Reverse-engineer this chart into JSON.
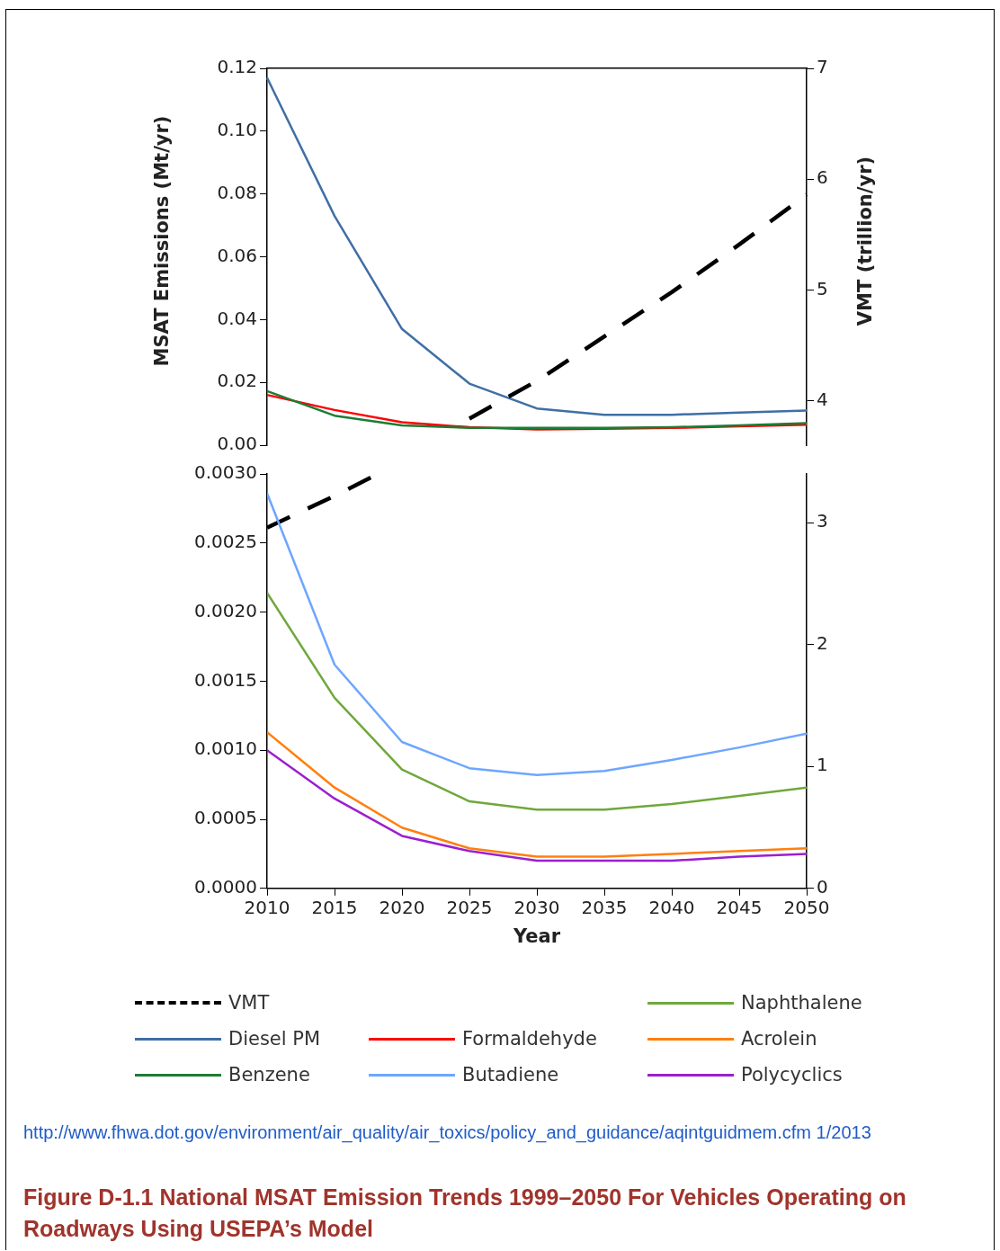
{
  "chart_data": [
    {
      "type": "line",
      "ylabel": "MSAT Emissions (Mt/yr)",
      "y2label": "VMT (trillion/yr)",
      "categories": [
        null,
        null,
        null,
        null,
        null,
        null,
        null,
        null,
        null
      ],
      "ylim": [
        0,
        0.12
      ],
      "yticks": [
        {
          "value": 0,
          "label": "0.00"
        },
        {
          "value": 0.02,
          "label": "0.02"
        },
        {
          "value": 0.04,
          "label": "0.04"
        },
        {
          "value": 0.06,
          "label": "0.06"
        },
        {
          "value": 0.08,
          "label": "0.08"
        },
        {
          "value": 0.1,
          "label": "0.10"
        },
        {
          "value": 0.12,
          "label": "0.12"
        }
      ],
      "y2lim": [
        3.6,
        7
      ],
      "y2ticks": [
        4,
        5,
        6,
        7
      ],
      "grid": false,
      "legend": "bottom",
      "marker": "none",
      "series": [
        {
          "name": "VMT",
          "color": "#000000",
          "axis": "y2",
          "line_style": "dashed",
          "values": [
            null,
            null,
            null,
            3.84,
            4.18,
            4.58,
            4.98,
            5.41,
            5.86
          ]
        },
        {
          "name": "Diesel PM",
          "color": "#3f6fa5",
          "values": [
            0.117,
            0.073,
            0.037,
            0.0196,
            0.0117,
            0.0097,
            0.0097,
            0.0104,
            0.011
          ]
        },
        {
          "name": "Benzene",
          "color": "#1e7b34",
          "values": [
            0.0172,
            0.0094,
            0.0063,
            0.0055,
            0.0055,
            0.0055,
            0.0057,
            0.0063,
            0.007
          ]
        },
        {
          "name": "Formaldehyde",
          "color": "#ff0000",
          "values": [
            0.016,
            0.0112,
            0.0073,
            0.0057,
            0.005,
            0.0052,
            0.0055,
            0.006,
            0.0065
          ]
        }
      ]
    },
    {
      "type": "line",
      "title": "Figure D-1.1 National MSAT Emission Trends 1999–2050 For Vehicles Operating on Roadways Using USEPA’s Model",
      "xlabel": "Year",
      "x": [
        2010,
        2015,
        2020,
        2025,
        2030,
        2035,
        2040,
        2045,
        2050
      ],
      "xlim": [
        2010,
        2050
      ],
      "xticks": [
        2010,
        2015,
        2020,
        2025,
        2030,
        2035,
        2040,
        2045,
        2050
      ],
      "ylim": [
        0,
        0.003
      ],
      "yticks": [
        {
          "value": 0,
          "label": "0.0000"
        },
        {
          "value": 0.0005,
          "label": "0.0005"
        },
        {
          "value": 0.001,
          "label": "0.0010"
        },
        {
          "value": 0.0015,
          "label": "0.0015"
        },
        {
          "value": 0.002,
          "label": "0.0020"
        },
        {
          "value": 0.0025,
          "label": "0.0025"
        },
        {
          "value": 0.003,
          "label": "0.0030"
        }
      ],
      "y2lim": [
        0,
        3.4
      ],
      "y2ticks": [
        0,
        1,
        2,
        3
      ],
      "grid": false,
      "legend": "bottom",
      "marker": "none",
      "series": [
        {
          "name": "Butadiene",
          "color": "#6ea6ff",
          "values": [
            0.00286,
            0.00162,
            0.00106,
            0.00087,
            0.00082,
            0.00085,
            0.00093,
            0.00102,
            0.00112
          ]
        },
        {
          "name": "Naphthalene",
          "color": "#6fa83c",
          "values": [
            0.00214,
            0.00138,
            0.00086,
            0.00063,
            0.00057,
            0.00057,
            0.00061,
            0.00067,
            0.00073
          ]
        },
        {
          "name": "Acrolein",
          "color": "#ff7f0e",
          "values": [
            0.00113,
            0.00073,
            0.00044,
            0.00029,
            0.00023,
            0.00023,
            0.00025,
            0.00027,
            0.00029
          ]
        },
        {
          "name": "Polycyclics",
          "color": "#9b1fd0",
          "values": [
            0.001,
            0.00065,
            0.00038,
            0.00027,
            0.0002,
            0.0002,
            0.0002,
            0.00023,
            0.00025
          ]
        },
        {
          "color": "#000000",
          "axis": "y2",
          "line_style": "dashed",
          "x": [
            2010,
            2015,
            2018.2
          ],
          "values": [
            2.96,
            3.22,
            3.4
          ]
        }
      ],
      "annotations": [
        "http://www.fhwa.dot.gov/environment/air_quality/air_toxics/policy_and_guidance/aqintguidmem.cfm 1/2013"
      ]
    }
  ]
}
